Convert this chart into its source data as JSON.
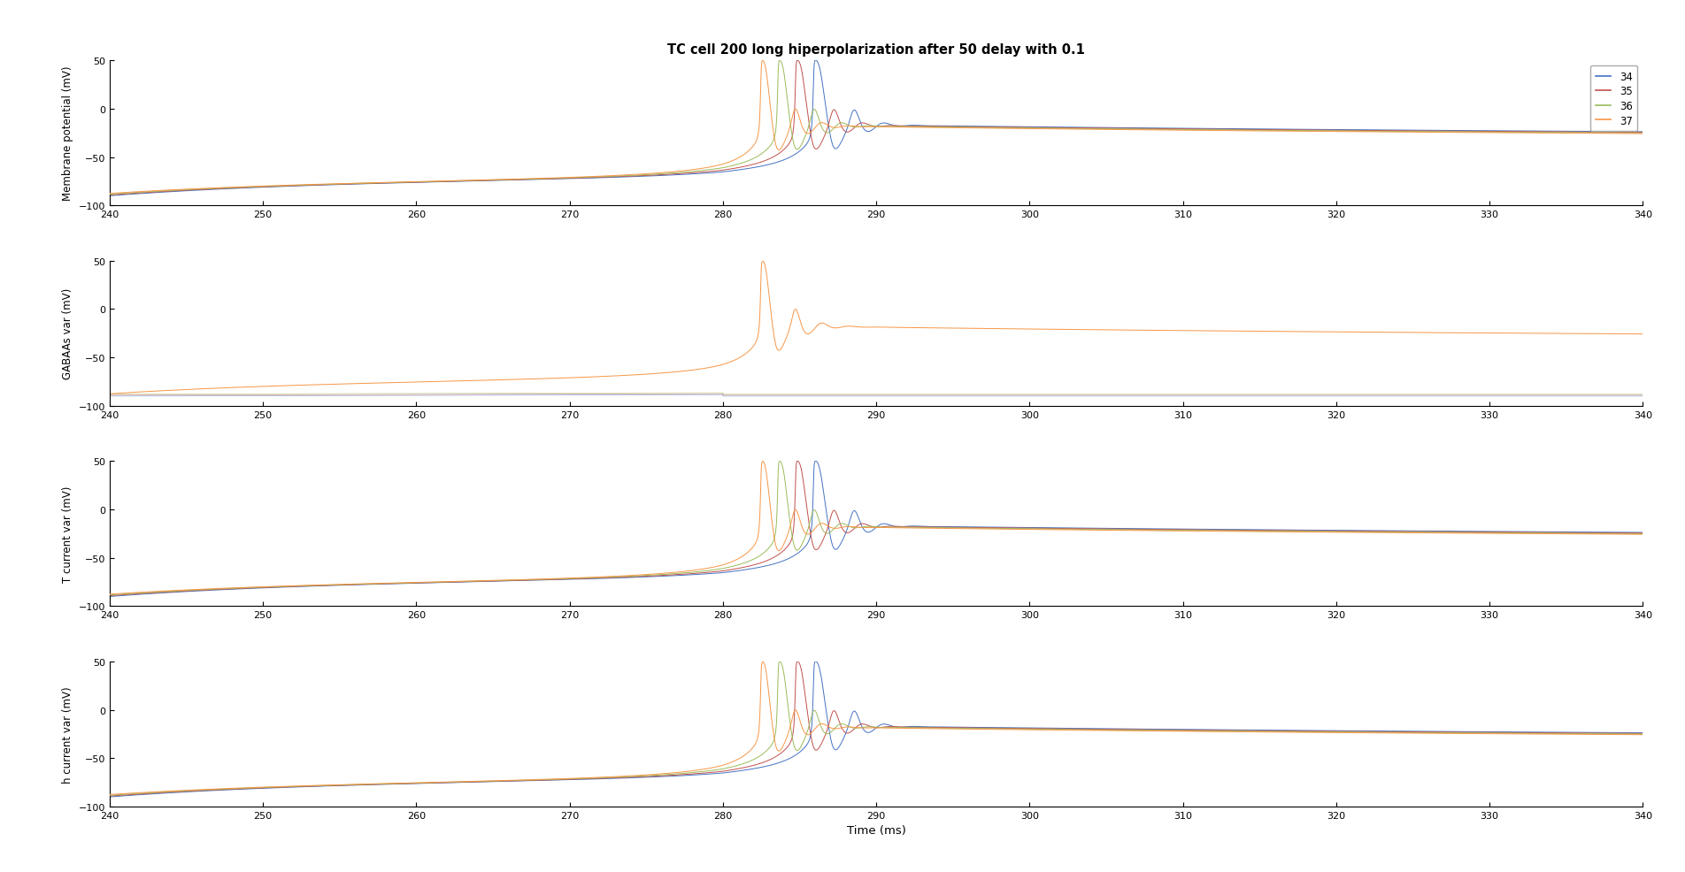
{
  "title": "TC cell 200 long hiperpolarization after 50 delay with 0.1",
  "xlabel": "Time (ms)",
  "ylabels": [
    "Membrane potential (mV)",
    "GABAAs var (mV)",
    "T current var (mV)",
    "h current var (mV)"
  ],
  "xlim": [
    240,
    340
  ],
  "ylim": [
    -100,
    50
  ],
  "yticks": [
    -100,
    -50,
    0,
    50
  ],
  "xticks": [
    240,
    250,
    260,
    270,
    280,
    290,
    300,
    310,
    320,
    330,
    340
  ],
  "legend_labels": [
    "34",
    "35",
    "36",
    "37"
  ],
  "colors": [
    "#4472C4",
    "#C0504D",
    "#9BBB59",
    "#F79646"
  ],
  "temps": [
    34,
    35,
    36,
    37
  ],
  "background_color": "#FFFFFF",
  "figure_facecolor": "#FFFFFF"
}
